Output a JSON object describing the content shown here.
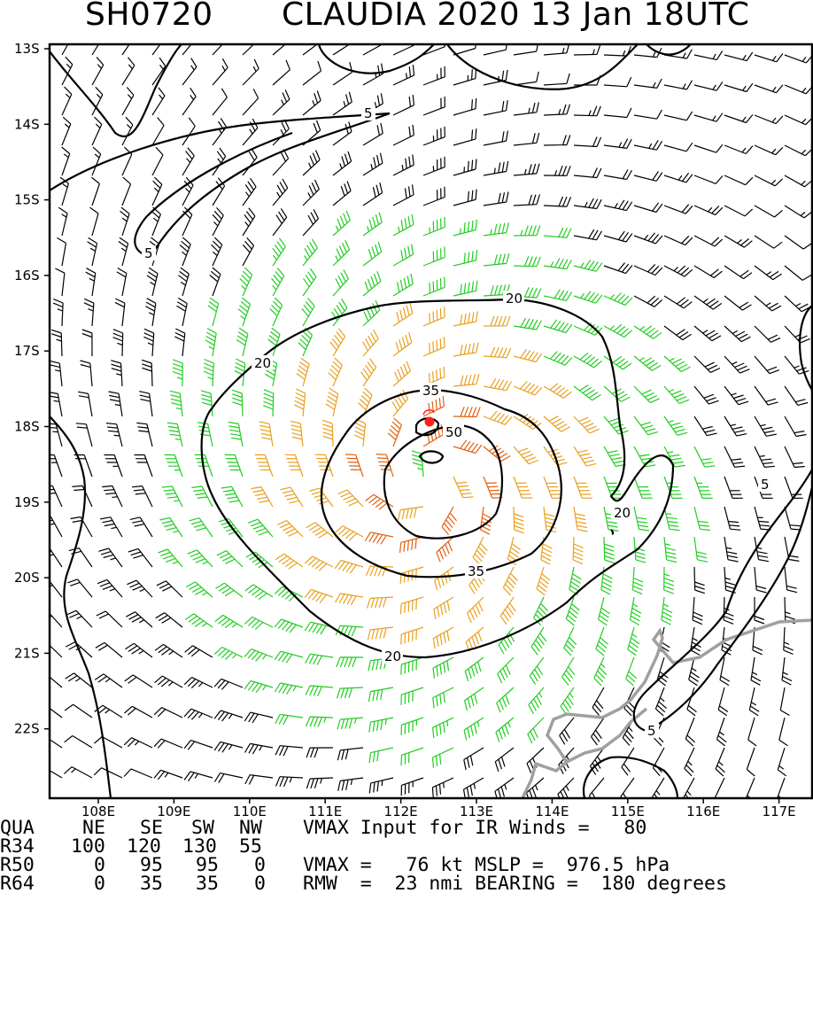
{
  "title": {
    "storm_id": "SH0720",
    "storm_info": "CLAUDIA 2020 13 Jan 18UTC"
  },
  "map": {
    "lat_labels": [
      "13S",
      "14S",
      "15S",
      "16S",
      "17S",
      "18S",
      "19S",
      "20S",
      "21S",
      "22S"
    ],
    "lon_labels": [
      "108E",
      "109E",
      "110E",
      "111E",
      "112E",
      "113E",
      "114E",
      "115E",
      "116E",
      "117E"
    ],
    "contour_labels": [
      "5",
      "5",
      "20",
      "20",
      "35",
      "50",
      "35",
      "20",
      "20",
      "5",
      "5"
    ],
    "colors": {
      "low": "#000000",
      "34kt": "#22cc22",
      "50kt": "#e8a020",
      "64kt": "#e06010",
      "center": "#ff2020",
      "coast": "#a0a0a0",
      "contour": "#000000"
    }
  },
  "footer": {
    "header_row": [
      "QUA",
      "NE",
      "SE",
      "SW",
      "NW"
    ],
    "r34": [
      "R34",
      "100",
      "120",
      "130",
      "55"
    ],
    "r50": [
      "R50",
      "0",
      "95",
      "95",
      "0"
    ],
    "r64": [
      "R64",
      "0",
      "35",
      "35",
      "0"
    ],
    "vmax_input": "VMAX Input for IR Winds =   80",
    "vmax_mslp": "VMAX =   76 kt MSLP =  976.5 hPa",
    "rmw_bearing": "RMW  =  23 nmi BEARING =  180 degrees"
  }
}
